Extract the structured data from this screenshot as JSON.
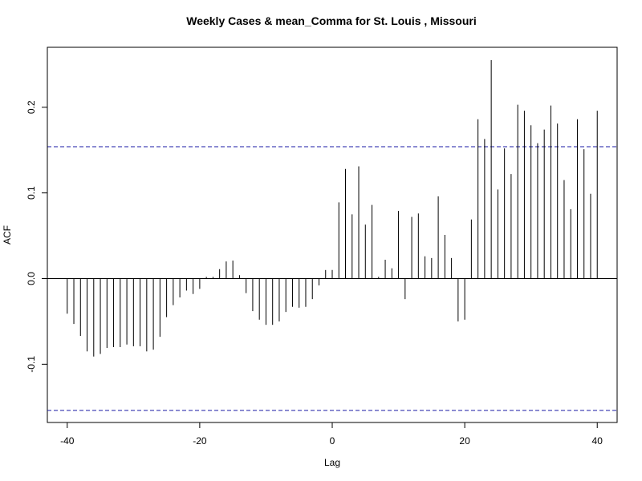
{
  "chart_data": {
    "type": "bar",
    "title": "Weekly Cases & mean_Comma for St. Louis , Missouri",
    "xlabel": "Lag",
    "ylabel": "ACF",
    "xlim": [
      -43,
      43
    ],
    "ylim": [
      -0.168,
      0.27
    ],
    "x_ticks": [
      -40,
      -20,
      0,
      20,
      40
    ],
    "x_tick_labels": [
      "-40",
      "-20",
      "0",
      "20",
      "40"
    ],
    "y_ticks": [
      -0.1,
      0.0,
      0.1,
      0.2
    ],
    "y_tick_labels": [
      "-0.1",
      "0.0",
      "0.1",
      "0.2"
    ],
    "confidence_band": [
      -0.154,
      0.154
    ],
    "grid": false,
    "lags": [
      -40,
      -39,
      -38,
      -37,
      -36,
      -35,
      -34,
      -33,
      -32,
      -31,
      -30,
      -29,
      -28,
      -27,
      -26,
      -25,
      -24,
      -23,
      -22,
      -21,
      -20,
      -19,
      -18,
      -17,
      -16,
      -15,
      -14,
      -13,
      -12,
      -11,
      -10,
      -9,
      -8,
      -7,
      -6,
      -5,
      -4,
      -3,
      -2,
      -1,
      0,
      1,
      2,
      3,
      4,
      5,
      6,
      7,
      8,
      9,
      10,
      11,
      12,
      13,
      14,
      15,
      16,
      17,
      18,
      19,
      20,
      21,
      22,
      23,
      24,
      25,
      26,
      27,
      28,
      29,
      30,
      31,
      32,
      33,
      34,
      35,
      36,
      37,
      38,
      39,
      40
    ],
    "values": [
      -0.041,
      -0.053,
      -0.067,
      -0.085,
      -0.091,
      -0.088,
      -0.081,
      -0.08,
      -0.08,
      -0.077,
      -0.079,
      -0.079,
      -0.085,
      -0.083,
      -0.068,
      -0.045,
      -0.031,
      -0.022,
      -0.014,
      -0.018,
      -0.012,
      0.002,
      0.002,
      0.011,
      0.02,
      0.021,
      0.004,
      -0.017,
      -0.038,
      -0.048,
      -0.054,
      -0.054,
      -0.05,
      -0.039,
      -0.033,
      -0.034,
      -0.033,
      -0.024,
      -0.008,
      0.01,
      0.01,
      0.089,
      0.128,
      0.075,
      0.131,
      0.063,
      0.086,
      0.002,
      0.022,
      0.012,
      0.079,
      -0.024,
      0.072,
      0.076,
      0.026,
      0.024,
      0.096,
      0.051,
      0.024,
      -0.05,
      -0.048,
      0.069,
      0.186,
      0.163,
      0.255,
      0.104,
      0.152,
      0.122,
      0.203,
      0.196,
      0.179,
      0.158,
      0.174,
      0.202,
      0.181,
      0.115,
      0.081,
      0.186,
      0.151,
      0.099,
      0.196
    ]
  }
}
